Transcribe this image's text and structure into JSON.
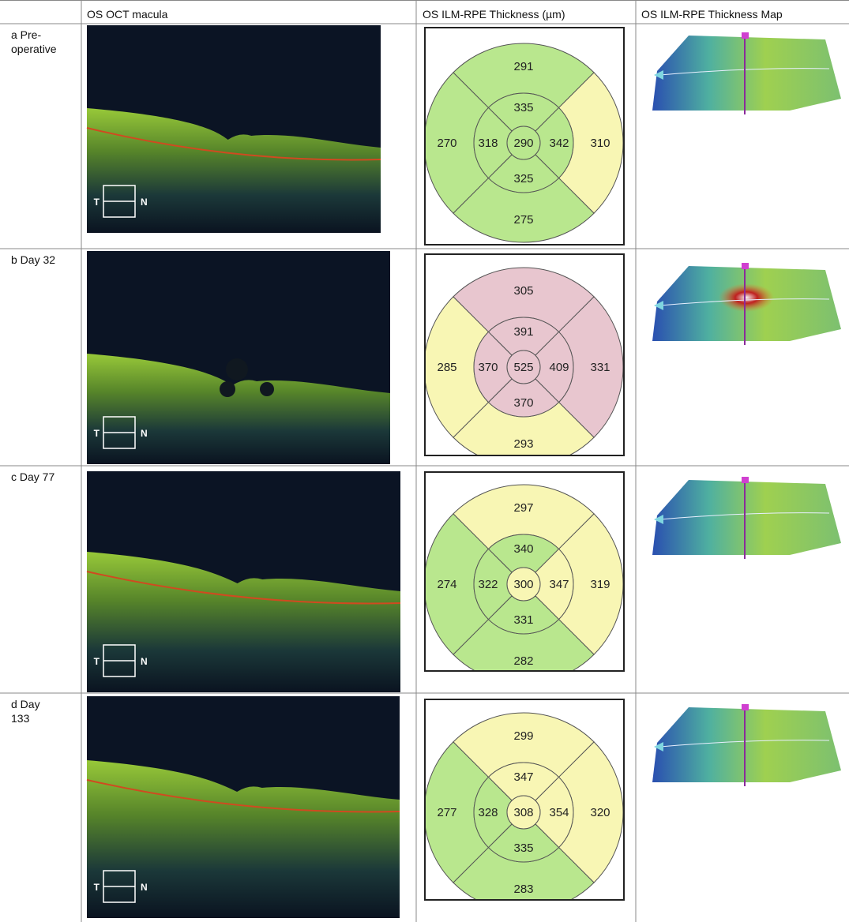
{
  "table": {
    "headers": [
      "OS OCT macula",
      "OS ILM-RPE Thickness (µm)",
      "OS ILM-RPE Thickness Map"
    ],
    "orientation": {
      "temporal": "T",
      "nasal": "N"
    },
    "rows": [
      {
        "label": "a  Pre-operative",
        "thickness": {
          "outer_superior": {
            "value": 291,
            "color": "#b9e78e"
          },
          "outer_temporal": {
            "value": 270,
            "color": "#b9e78e"
          },
          "outer_nasal": {
            "value": 310,
            "color": "#f8f6b4"
          },
          "outer_inferior": {
            "value": 275,
            "color": "#b9e78e"
          },
          "inner_superior": {
            "value": 335,
            "color": "#b9e78e"
          },
          "inner_temporal": {
            "value": 318,
            "color": "#b9e78e"
          },
          "inner_nasal": {
            "value": 342,
            "color": "#b9e78e"
          },
          "inner_inferior": {
            "value": 325,
            "color": "#b9e78e"
          },
          "center": {
            "value": 290,
            "color": "#b9e78e"
          }
        }
      },
      {
        "label": "b  Day 32",
        "thickness": {
          "outer_superior": {
            "value": 305,
            "color": "#e8c6cf"
          },
          "outer_temporal": {
            "value": 285,
            "color": "#f8f6b4"
          },
          "outer_nasal": {
            "value": 331,
            "color": "#e8c6cf"
          },
          "outer_inferior": {
            "value": 293,
            "color": "#f8f6b4"
          },
          "inner_superior": {
            "value": 391,
            "color": "#e8c6cf"
          },
          "inner_temporal": {
            "value": 370,
            "color": "#e8c6cf"
          },
          "inner_nasal": {
            "value": 409,
            "color": "#e8c6cf"
          },
          "inner_inferior": {
            "value": 370,
            "color": "#e8c6cf"
          },
          "center": {
            "value": 525,
            "color": "#e8c6cf"
          }
        }
      },
      {
        "label": "c  Day 77",
        "thickness": {
          "outer_superior": {
            "value": 297,
            "color": "#f8f6b4"
          },
          "outer_temporal": {
            "value": 274,
            "color": "#b9e78e"
          },
          "outer_nasal": {
            "value": 319,
            "color": "#f8f6b4"
          },
          "outer_inferior": {
            "value": 282,
            "color": "#b9e78e"
          },
          "inner_superior": {
            "value": 340,
            "color": "#b9e78e"
          },
          "inner_temporal": {
            "value": 322,
            "color": "#b9e78e"
          },
          "inner_nasal": {
            "value": 347,
            "color": "#f8f6b4"
          },
          "inner_inferior": {
            "value": 331,
            "color": "#b9e78e"
          },
          "center": {
            "value": 300,
            "color": "#f8f6b4"
          }
        }
      },
      {
        "label": "d  Day 133",
        "thickness": {
          "outer_superior": {
            "value": 299,
            "color": "#f8f6b4"
          },
          "outer_temporal": {
            "value": 277,
            "color": "#b9e78e"
          },
          "outer_nasal": {
            "value": 320,
            "color": "#f8f6b4"
          },
          "outer_inferior": {
            "value": 283,
            "color": "#b9e78e"
          },
          "inner_superior": {
            "value": 347,
            "color": "#f8f6b4"
          },
          "inner_temporal": {
            "value": 328,
            "color": "#b9e78e"
          },
          "inner_nasal": {
            "value": 354,
            "color": "#f8f6b4"
          },
          "inner_inferior": {
            "value": 335,
            "color": "#b9e78e"
          },
          "center": {
            "value": 308,
            "color": "#f8f6b4"
          }
        }
      }
    ]
  }
}
